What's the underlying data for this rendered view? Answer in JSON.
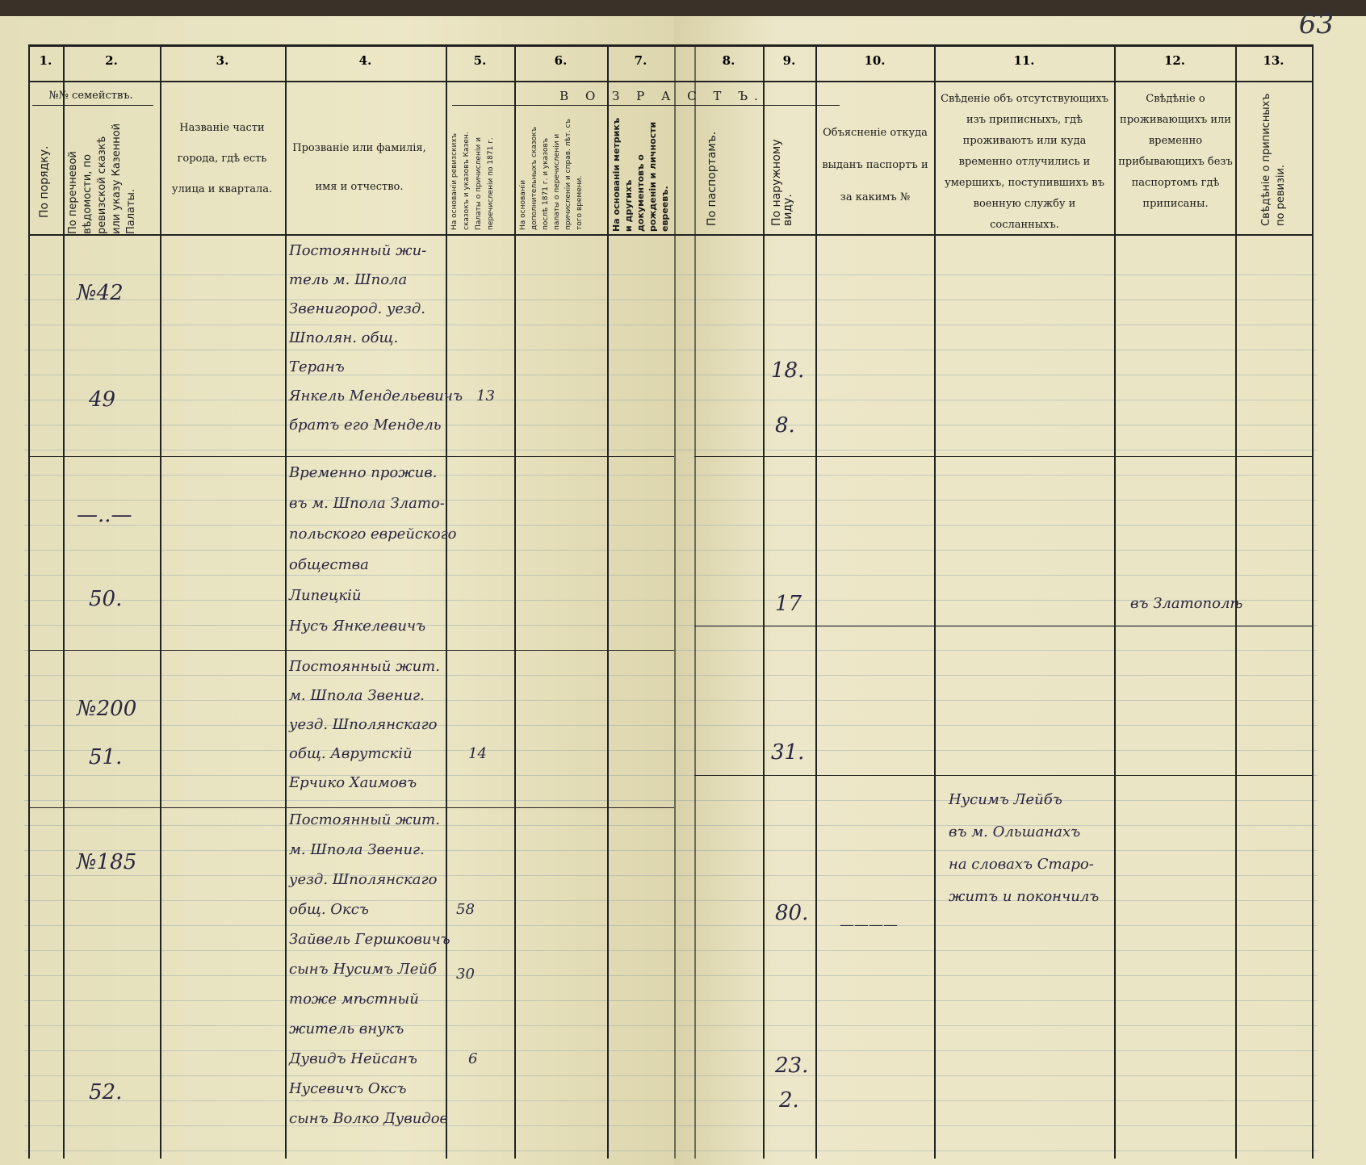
{
  "page_number": "63",
  "columns": {
    "numbers": [
      "1.",
      "2.",
      "3.",
      "4.",
      "5.",
      "6.",
      "7.",
      "8.",
      "9.",
      "10.",
      "11.",
      "12.",
      "13."
    ],
    "families_group": "№№ семействъ.",
    "age_group": "В О З Р А С Т Ъ.",
    "c1": "По порядку.",
    "c2": "По перечневой вѣдомости, по ревизской сказкѣ или указу Казенной Палаты.",
    "c3": "Названіе части города, гдѣ есть улица и квартала.",
    "c4": "Прозваніе или фамилія, имя и отчество.",
    "c5": "На основаніи ревизскихъ сказокъ и указовъ Казен. Палаты о причисленіи и перечисленіи по 1871 г.",
    "c6": "На основаніи дополнительныхъ сказокъ послѣ 1871 г. и указовъ палаты о перечисленіи и причисленіи и справ. лѣт. съ того времени.",
    "c7": "На основаніи метрикъ и другихъ документовъ о рожденіи и личности евреевъ.",
    "c8": "По паспортамъ.",
    "c9": "По наружному виду.",
    "c10": "Объясненіе откуда выданъ паспортъ и за какимъ №",
    "c11": "Свѣденіе объ отсутствующихъ изъ приписныхъ, гдѣ проживаютъ или куда временно отлучились и умершихъ, поступившихъ въ военную службу и сосланныхъ.",
    "c12": "Свѣдѣніе о проживающихъ или временно прибывающихъ безъ паспортомъ гдѣ приписаны.",
    "c13": "Свѣдѣніе о приписныхъ по ревизіи."
  },
  "entries": [
    {
      "c2": [
        "№42",
        "49"
      ],
      "c4": [
        "Постоянный жи-",
        "тель м. Шпола",
        "Звенигород. уезд.",
        "Шполян. общ.",
        "Теранъ",
        "Янкель Мендельевичъ",
        "братъ его Мендель"
      ],
      "c5": "13",
      "c9": [
        "18.",
        "8."
      ]
    },
    {
      "c2": [
        "—..—",
        "50."
      ],
      "c4": [
        "Временно прожив.",
        "въ м. Шпола Злато-",
        "польского еврейского",
        "общества",
        "Липецкій",
        "Нусъ Янкелевичъ"
      ],
      "c9": [
        "17"
      ],
      "c12": "въ Златополѣ"
    },
    {
      "c2": [
        "№200",
        "51."
      ],
      "c4": [
        "Постоянный жит.",
        "м. Шпола Звениг.",
        "уезд. Шполянскаго",
        "общ. Аврутскій",
        "Ерчико Хаимовъ"
      ],
      "c5": "14",
      "c9": [
        "31."
      ]
    },
    {
      "c2": [
        "№185",
        "52."
      ],
      "c4": [
        "Постоянный жит.",
        "м. Шпола Звениг.",
        "уезд. Шполянскаго",
        "общ. Оксъ",
        "Зайвель Гершковичъ",
        "сынъ Нусимъ Лейб",
        "тоже мѣстный",
        "житель внукъ",
        "Дувидъ Нейсанъ",
        "Нусевичъ Оксъ",
        "сынъ Волко Дувидов"
      ],
      "c5": [
        "58",
        "30",
        "6"
      ],
      "c9": [
        "80.",
        "23.",
        "2."
      ],
      "c11": [
        "Нусимъ Лейбъ",
        "въ м. Ольшанахъ",
        "на словахъ Старо-",
        "житъ и покончилъ"
      ],
      "c10": "————"
    }
  ]
}
